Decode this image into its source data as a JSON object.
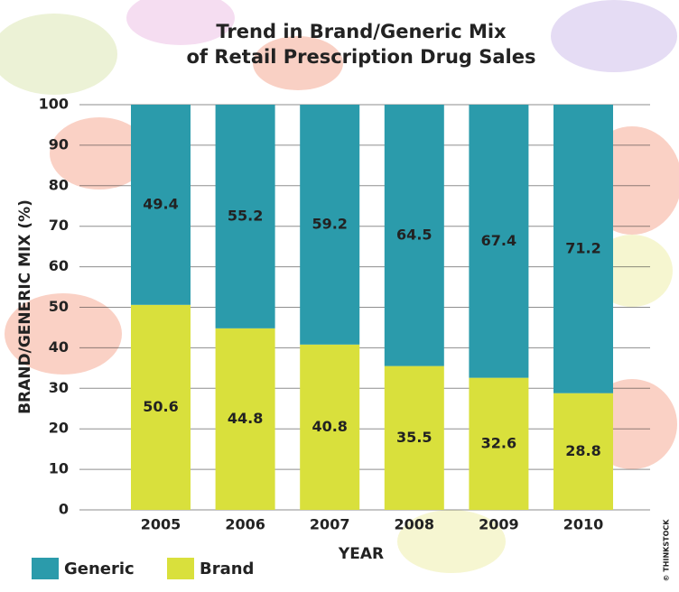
{
  "chart_data": {
    "type": "stacked_bar",
    "title": [
      "Trend in Brand/Generic Mix",
      "of Retail Prescription Drug Sales"
    ],
    "x_label": "YEAR",
    "y_label": "BRAND/GENERIC MIX (%)",
    "credit": "© THINKSTOCK",
    "categories": [
      "2005",
      "2006",
      "2007",
      "2008",
      "2009",
      "2010"
    ],
    "series": [
      {
        "name": "Generic",
        "color": "#2b9bab",
        "values": [
          49.4,
          55.2,
          59.2,
          64.5,
          67.4,
          71.2
        ]
      },
      {
        "name": "Brand",
        "color": "#d9e03c",
        "values": [
          50.6,
          44.8,
          40.8,
          35.5,
          32.6,
          28.8
        ]
      }
    ],
    "ylim": [
      0,
      100
    ],
    "yticks": [
      0,
      10,
      20,
      30,
      40,
      50,
      60,
      70,
      80,
      90,
      100
    ],
    "grid": true,
    "legend": "bottom-left"
  }
}
